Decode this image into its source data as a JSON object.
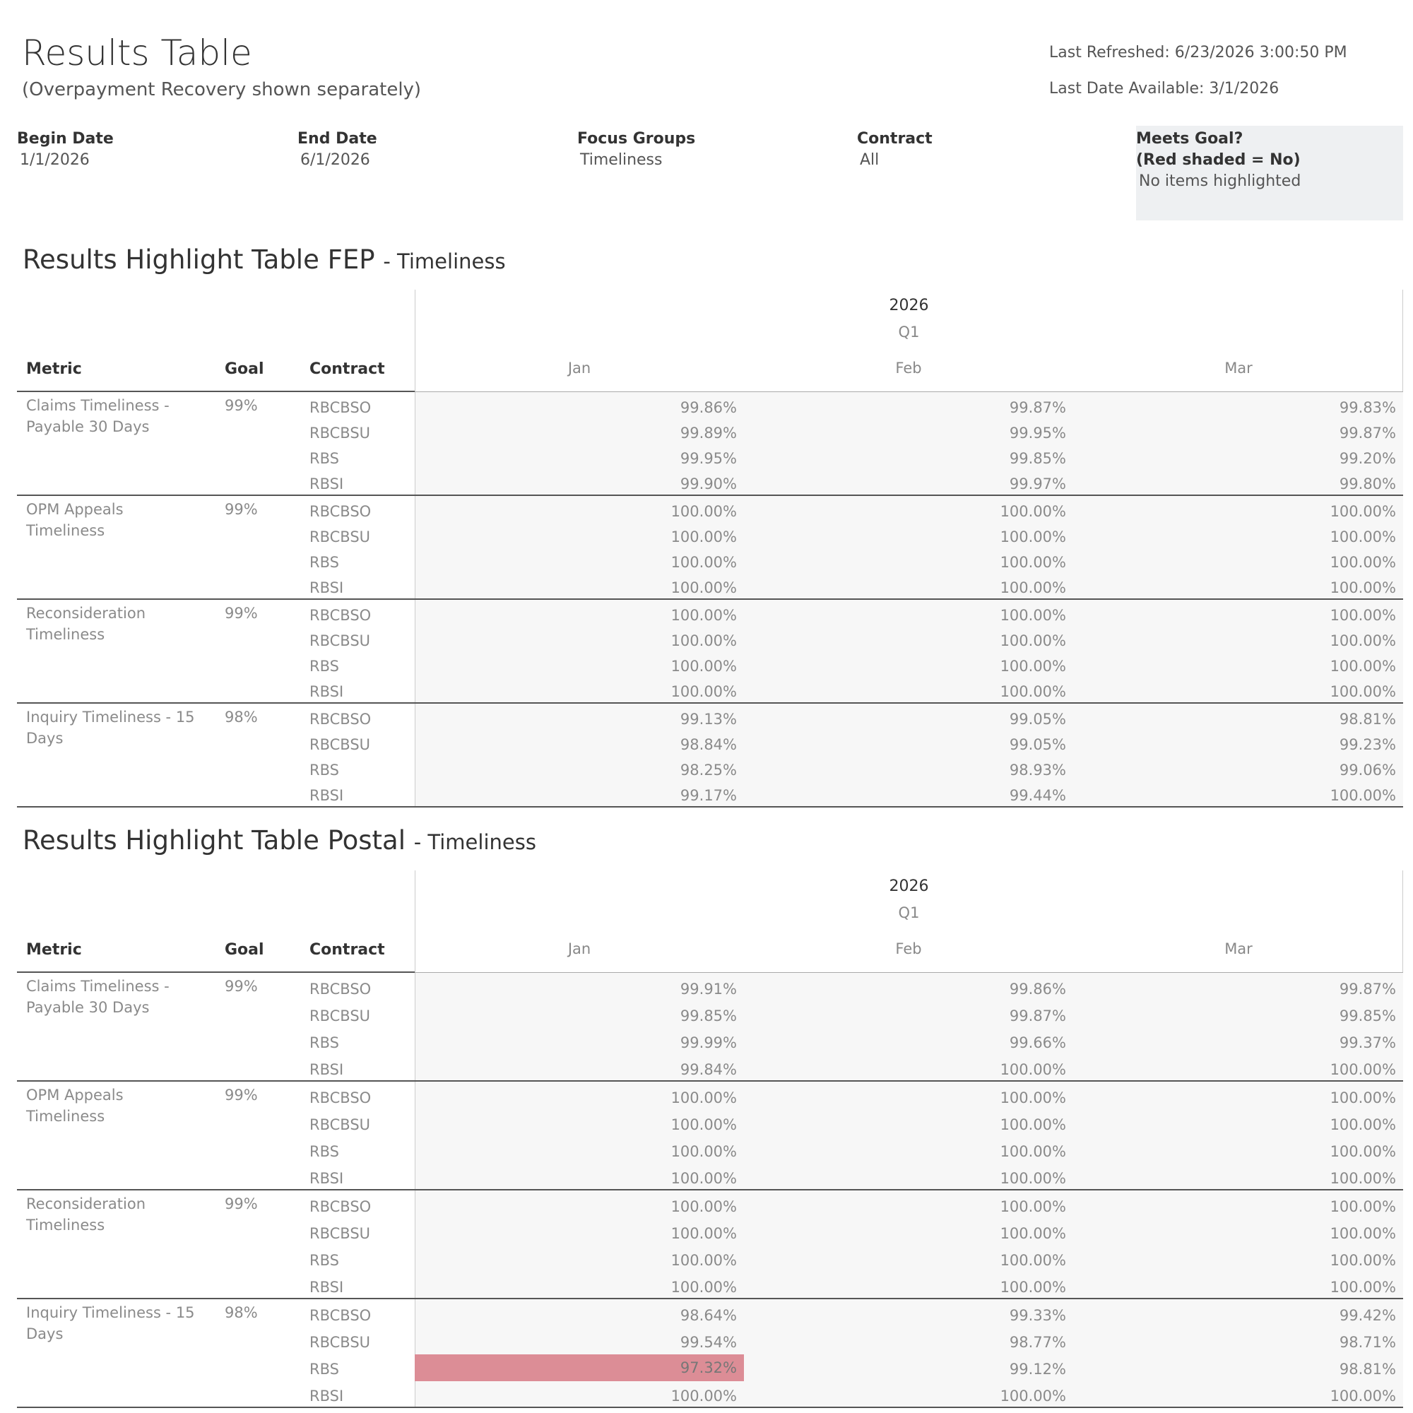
{
  "header": {
    "title": "Results Table",
    "subtitle": "(Overpayment Recovery shown separately)",
    "last_refreshed": "Last Refreshed: 6/23/2026 3:00:50 PM",
    "last_date_available": "Last Date Available: 3/1/2026"
  },
  "filters": {
    "begin_date": {
      "label": "Begin Date",
      "value": "1/1/2026"
    },
    "end_date": {
      "label": "End Date",
      "value": "6/1/2026"
    },
    "focus_groups": {
      "label": "Focus Groups",
      "value": "Timeliness"
    },
    "contract": {
      "label": "Contract",
      "value": "All"
    },
    "meets_goal": {
      "label_line1": "Meets Goal?",
      "label_line2": "(Red shaded = No)",
      "value": "No items highlighted"
    }
  },
  "colors": {
    "miss_fill": "#dc8d96",
    "panel_fill": "#eef0f2",
    "cell_fill": "#f7f7f7"
  },
  "tables": [
    {
      "title": "Results Highlight Table FEP",
      "subtitle": "- Timeliness",
      "columns": {
        "metric": "Metric",
        "goal": "Goal",
        "contract": "Contract"
      },
      "year": "2026",
      "quarter": "Q1",
      "months": [
        "Jan",
        "Feb",
        "Mar"
      ],
      "groups": [
        {
          "metric": "Claims Timeliness - Payable 30 Days",
          "goal": "99%",
          "rows": [
            {
              "contract": "RBCBSO",
              "values": [
                "99.86%",
                "99.87%",
                "99.83%"
              ]
            },
            {
              "contract": "RBCBSU",
              "values": [
                "99.89%",
                "99.95%",
                "99.87%"
              ]
            },
            {
              "contract": "RBS",
              "values": [
                "99.95%",
                "99.85%",
                "99.20%"
              ]
            },
            {
              "contract": "RBSI",
              "values": [
                "99.90%",
                "99.97%",
                "99.80%"
              ]
            }
          ]
        },
        {
          "metric": "OPM Appeals Timeliness",
          "goal": "99%",
          "rows": [
            {
              "contract": "RBCBSO",
              "values": [
                "100.00%",
                "100.00%",
                "100.00%"
              ]
            },
            {
              "contract": "RBCBSU",
              "values": [
                "100.00%",
                "100.00%",
                "100.00%"
              ]
            },
            {
              "contract": "RBS",
              "values": [
                "100.00%",
                "100.00%",
                "100.00%"
              ]
            },
            {
              "contract": "RBSI",
              "values": [
                "100.00%",
                "100.00%",
                "100.00%"
              ]
            }
          ]
        },
        {
          "metric": "Reconsideration Timeliness",
          "goal": "99%",
          "rows": [
            {
              "contract": "RBCBSO",
              "values": [
                "100.00%",
                "100.00%",
                "100.00%"
              ]
            },
            {
              "contract": "RBCBSU",
              "values": [
                "100.00%",
                "100.00%",
                "100.00%"
              ]
            },
            {
              "contract": "RBS",
              "values": [
                "100.00%",
                "100.00%",
                "100.00%"
              ]
            },
            {
              "contract": "RBSI",
              "values": [
                "100.00%",
                "100.00%",
                "100.00%"
              ]
            }
          ]
        },
        {
          "metric": "Inquiry Timeliness - 15 Days",
          "goal": "98%",
          "rows": [
            {
              "contract": "RBCBSO",
              "values": [
                "99.13%",
                "99.05%",
                "98.81%"
              ]
            },
            {
              "contract": "RBCBSU",
              "values": [
                "98.84%",
                "99.05%",
                "99.23%"
              ]
            },
            {
              "contract": "RBS",
              "values": [
                "98.25%",
                "98.93%",
                "99.06%"
              ]
            },
            {
              "contract": "RBSI",
              "values": [
                "99.17%",
                "99.44%",
                "100.00%"
              ]
            }
          ]
        }
      ]
    },
    {
      "title": "Results Highlight Table Postal",
      "subtitle": "- Timeliness",
      "columns": {
        "metric": "Metric",
        "goal": "Goal",
        "contract": "Contract"
      },
      "year": "2026",
      "quarter": "Q1",
      "months": [
        "Jan",
        "Feb",
        "Mar"
      ],
      "groups": [
        {
          "metric": "Claims Timeliness - Payable 30 Days",
          "goal": "99%",
          "rows": [
            {
              "contract": "RBCBSO",
              "values": [
                "99.91%",
                "99.86%",
                "99.87%"
              ]
            },
            {
              "contract": "RBCBSU",
              "values": [
                "99.85%",
                "99.87%",
                "99.85%"
              ]
            },
            {
              "contract": "RBS",
              "values": [
                "99.99%",
                "99.66%",
                "99.37%"
              ]
            },
            {
              "contract": "RBSI",
              "values": [
                "99.84%",
                "100.00%",
                "100.00%"
              ]
            }
          ]
        },
        {
          "metric": "OPM Appeals Timeliness",
          "goal": "99%",
          "rows": [
            {
              "contract": "RBCBSO",
              "values": [
                "100.00%",
                "100.00%",
                "100.00%"
              ]
            },
            {
              "contract": "RBCBSU",
              "values": [
                "100.00%",
                "100.00%",
                "100.00%"
              ]
            },
            {
              "contract": "RBS",
              "values": [
                "100.00%",
                "100.00%",
                "100.00%"
              ]
            },
            {
              "contract": "RBSI",
              "values": [
                "100.00%",
                "100.00%",
                "100.00%"
              ]
            }
          ]
        },
        {
          "metric": "Reconsideration Timeliness",
          "goal": "99%",
          "rows": [
            {
              "contract": "RBCBSO",
              "values": [
                "100.00%",
                "100.00%",
                "100.00%"
              ]
            },
            {
              "contract": "RBCBSU",
              "values": [
                "100.00%",
                "100.00%",
                "100.00%"
              ]
            },
            {
              "contract": "RBS",
              "values": [
                "100.00%",
                "100.00%",
                "100.00%"
              ]
            },
            {
              "contract": "RBSI",
              "values": [
                "100.00%",
                "100.00%",
                "100.00%"
              ]
            }
          ]
        },
        {
          "metric": "Inquiry Timeliness - 15 Days",
          "goal": "98%",
          "rows": [
            {
              "contract": "RBCBSO",
              "values": [
                "98.64%",
                "99.33%",
                "99.42%"
              ]
            },
            {
              "contract": "RBCBSU",
              "values": [
                "99.54%",
                "98.77%",
                "98.71%"
              ]
            },
            {
              "contract": "RBS",
              "values": [
                "97.32%",
                "99.12%",
                "98.81%"
              ],
              "missed": [
                true,
                false,
                false
              ]
            },
            {
              "contract": "RBSI",
              "values": [
                "100.00%",
                "100.00%",
                "100.00%"
              ]
            }
          ]
        }
      ]
    }
  ]
}
